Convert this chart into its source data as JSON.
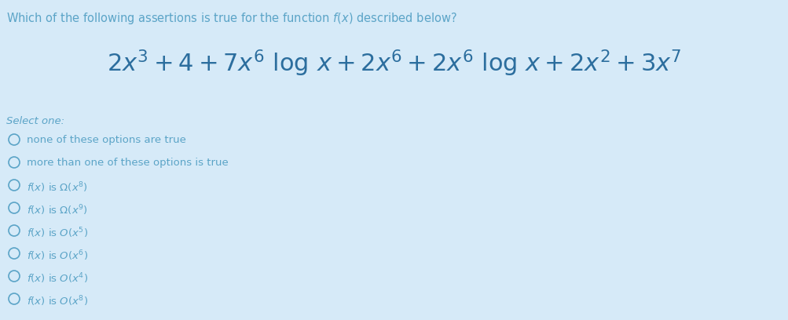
{
  "background_color": "#d6eaf8",
  "title_text": "Which of the following assertions is true for the function $f(x)$ described below?",
  "title_fontsize": 10.5,
  "title_color": "#5ba4c7",
  "formula": "$2x^3 + 4 + 7x^6\\ \\mathrm{log}\\ x + 2x^6 + 2x^6\\ \\mathrm{log}\\ x + 2x^2 + 3x^7$",
  "formula_fontsize": 22,
  "formula_color": "#2c6e9e",
  "select_one_text": "Select one:",
  "select_one_fontsize": 9.5,
  "select_one_color": "#5ba4c7",
  "options": [
    "none of these options are true",
    "more than one of these options is true",
    "$f(x)$ is $\\Omega(x^8)$",
    "$f(x)$ is $\\Omega(x^9)$",
    "$f(x)$ is $O(x^5)$",
    "$f(x)$ is $O(x^6)$",
    "$f(x)$ is $O(x^4)$",
    "$f(x)$ is $O(x^8)$"
  ],
  "options_fontsize": 9.5,
  "options_color": "#5ba4c7",
  "circle_color": "#5ba4c7",
  "circle_linewidth": 1.2
}
